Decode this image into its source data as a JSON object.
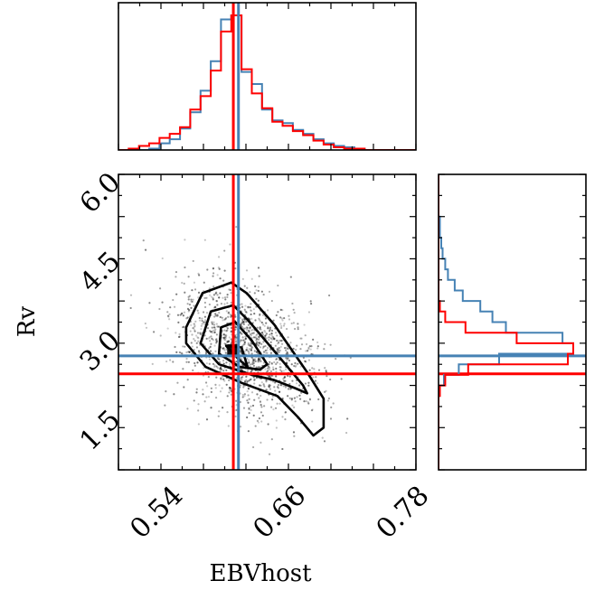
{
  "chart_data": {
    "type": "corner",
    "x_param": "EBVhost",
    "y_param": "Rv",
    "xlabel": "EBVhost",
    "ylabel": "Rv",
    "x_ticks": [
      "0.54",
      "0.66",
      "0.78"
    ],
    "y_ticks": [
      "1.5",
      "3.0",
      "4.5",
      "6.0"
    ],
    "xlim": [
      0.5,
      0.79
    ],
    "ylim": [
      0.6,
      6.2
    ],
    "truths": {
      "blue": {
        "EBVhost": 0.617,
        "Rv": 2.76
      },
      "red": {
        "EBVhost": 0.612,
        "Rv": 2.42
      }
    },
    "colors": {
      "blue": "#4682b4",
      "red": "#ff0000",
      "black": "#000000"
    },
    "hist_x_bins": [
      0.5,
      0.51,
      0.52,
      0.53,
      0.54,
      0.55,
      0.56,
      0.57,
      0.58,
      0.59,
      0.6,
      0.61,
      0.62,
      0.63,
      0.64,
      0.65,
      0.66,
      0.67,
      0.68,
      0.69,
      0.7,
      0.71,
      0.72,
      0.73,
      0.74,
      0.75,
      0.76,
      0.77,
      0.78,
      0.79
    ],
    "hist_x_blue": [
      0,
      0,
      0,
      0.01,
      0.05,
      0.08,
      0.16,
      0.28,
      0.44,
      0.66,
      0.97,
      1.0,
      0.58,
      0.49,
      0.3,
      0.22,
      0.2,
      0.15,
      0.12,
      0.08,
      0.05,
      0.03,
      0.02,
      0.01,
      0,
      0,
      0,
      0,
      0
    ],
    "hist_x_red": [
      0,
      0.01,
      0.03,
      0.05,
      0.09,
      0.12,
      0.17,
      0.3,
      0.4,
      0.59,
      0.88,
      1.0,
      0.6,
      0.42,
      0.31,
      0.21,
      0.18,
      0.14,
      0.11,
      0.07,
      0.04,
      0.02,
      0.01,
      0.01,
      0,
      0,
      0,
      0,
      0
    ],
    "hist_y_bins": [
      0.6,
      0.8,
      1.0,
      1.2,
      1.4,
      1.6,
      1.8,
      2.0,
      2.2,
      2.4,
      2.6,
      2.8,
      3.0,
      3.2,
      3.4,
      3.6,
      3.8,
      4.0,
      4.2,
      4.4,
      4.6,
      4.8,
      5.0,
      5.2,
      5.4,
      5.6,
      5.8,
      6.0,
      6.2
    ],
    "hist_y_blue": [
      0,
      0,
      0,
      0,
      0,
      0,
      0,
      0.01,
      0.04,
      0.15,
      0.45,
      1.0,
      0.92,
      0.5,
      0.4,
      0.31,
      0.18,
      0.12,
      0.07,
      0.05,
      0.03,
      0.02,
      0.01,
      0.01,
      0,
      0,
      0,
      0
    ],
    "hist_y_red": [
      0,
      0,
      0,
      0,
      0,
      0,
      0,
      0.01,
      0.05,
      0.22,
      0.96,
      1.0,
      0.58,
      0.2,
      0.05,
      0.01,
      0,
      0,
      0,
      0,
      0,
      0,
      0,
      0,
      0,
      0,
      0,
      0
    ],
    "contour_levels": [
      "0.5",
      "1.0",
      "1.5",
      "2.0"
    ],
    "contours": [
      [
        [
          0.605,
          2.95
        ],
        [
          0.617,
          2.7
        ],
        [
          0.626,
          2.55
        ],
        [
          0.62,
          2.92
        ],
        [
          0.605,
          2.95
        ]
      ],
      [
        [
          0.6,
          3.3
        ],
        [
          0.614,
          3.4
        ],
        [
          0.63,
          3.05
        ],
        [
          0.645,
          2.6
        ],
        [
          0.638,
          2.5
        ],
        [
          0.618,
          2.55
        ],
        [
          0.598,
          2.8
        ],
        [
          0.6,
          3.3
        ]
      ],
      [
        [
          0.58,
          3.0
        ],
        [
          0.59,
          3.6
        ],
        [
          0.612,
          3.72
        ],
        [
          0.628,
          3.4
        ],
        [
          0.652,
          2.85
        ],
        [
          0.68,
          2.2
        ],
        [
          0.684,
          2.05
        ],
        [
          0.672,
          2.15
        ],
        [
          0.652,
          2.3
        ],
        [
          0.63,
          2.4
        ],
        [
          0.598,
          2.6
        ],
        [
          0.58,
          3.0
        ]
      ],
      [
        [
          0.566,
          3.3
        ],
        [
          0.582,
          3.95
        ],
        [
          0.61,
          4.15
        ],
        [
          0.625,
          3.95
        ],
        [
          0.652,
          3.35
        ],
        [
          0.684,
          2.45
        ],
        [
          0.7,
          1.95
        ],
        [
          0.7,
          1.4
        ],
        [
          0.69,
          1.25
        ],
        [
          0.675,
          1.6
        ],
        [
          0.655,
          2.0
        ],
        [
          0.62,
          2.25
        ],
        [
          0.585,
          2.55
        ],
        [
          0.566,
          3.0
        ],
        [
          0.566,
          3.3
        ]
      ]
    ]
  }
}
